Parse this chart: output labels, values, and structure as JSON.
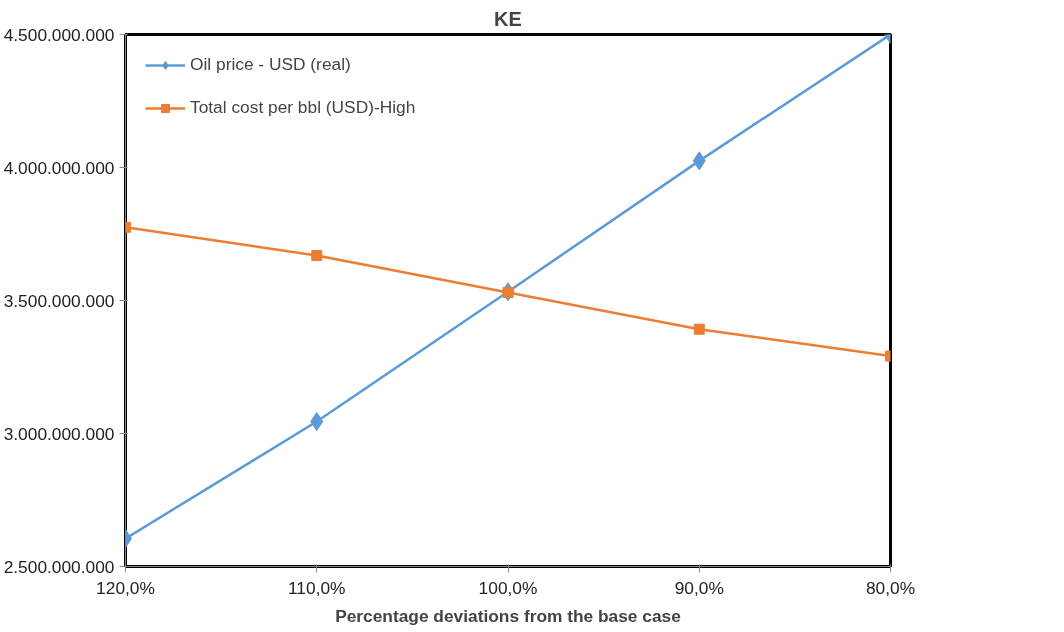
{
  "chart_data": {
    "type": "line",
    "title": "KE",
    "xlabel": "Percentage deviations from the base case",
    "categories": [
      "120,0%",
      "110,0%",
      "100,0%",
      "90,0%",
      "80,0%"
    ],
    "series": [
      {
        "name": "Oil price - USD (real)",
        "color": "#5b9bd5",
        "marker": "diamond",
        "values": [
          2605000000,
          3045000000,
          3533000000,
          4025000000,
          4500000000
        ]
      },
      {
        "name": "Total cost per bbl (USD)-High",
        "color": "#ed7d31",
        "marker": "square",
        "values": [
          3775000000,
          3669000000,
          3530000000,
          3392000000,
          3291000000
        ]
      }
    ],
    "ylim": [
      2500000000,
      4500000000
    ],
    "yticks": [
      {
        "value": 2500000000,
        "label": "2.500.000.000"
      },
      {
        "value": 3000000000,
        "label": "3.000.000.000"
      },
      {
        "value": 3500000000,
        "label": "3.500.000.000"
      },
      {
        "value": 4000000000,
        "label": "4.000.000.000"
      },
      {
        "value": 4500000000,
        "label": "4.500.000.000"
      }
    ],
    "grid": false,
    "legend": "top left",
    "line_style": "solid"
  }
}
